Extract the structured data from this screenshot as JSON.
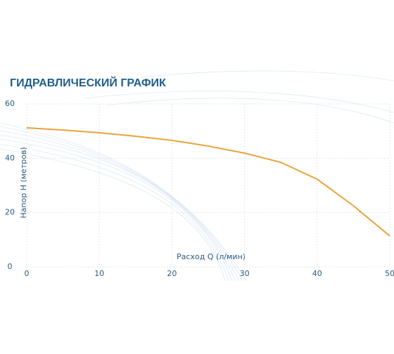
{
  "chart_data": {
    "type": "line",
    "title": "ГИДРАВЛИЧЕСКИЙ ГРАФИК",
    "x_label": "Расход Q (л/мин)",
    "y_label": "Напор H (метров)",
    "x": [
      0,
      5,
      10,
      15,
      20,
      25,
      30,
      35,
      40,
      45,
      50
    ],
    "values": [
      51.2,
      50.4,
      49.4,
      48.1,
      46.6,
      44.5,
      41.9,
      38.5,
      32.3,
      22.5,
      11.4
    ],
    "color": "#e8a33a",
    "xlim": [
      0,
      50
    ],
    "ylim": [
      0,
      60
    ],
    "xticks": [
      0,
      10,
      20,
      30,
      40,
      50
    ],
    "yticks": [
      0,
      20,
      40,
      60
    ],
    "grid": true
  }
}
